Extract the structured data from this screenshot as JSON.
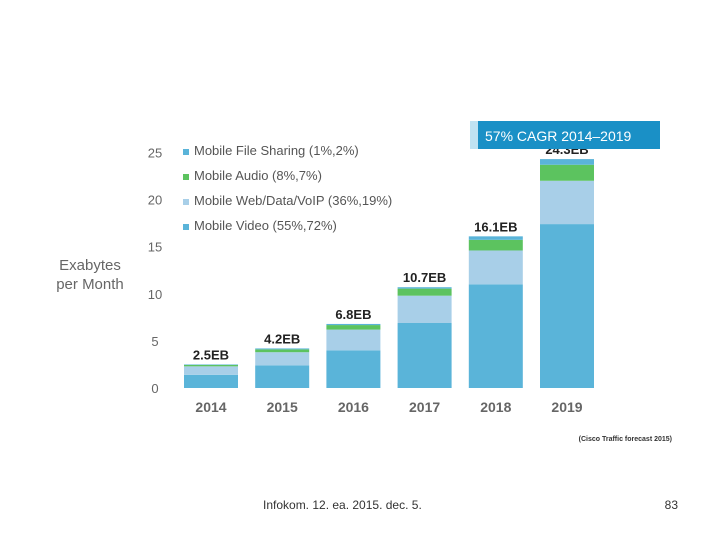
{
  "chart_data": {
    "type": "bar",
    "stacked": true,
    "categories": [
      "2014",
      "2015",
      "2016",
      "2017",
      "2018",
      "2019"
    ],
    "series": [
      {
        "name": "Mobile Video (55%,72%)",
        "color": "#5ab4d9",
        "values": [
          1.4,
          2.4,
          4.0,
          6.9,
          11.0,
          17.4
        ]
      },
      {
        "name": "Mobile Web/Data/VoIP (36%,19%)",
        "color": "#a8cfe8",
        "values": [
          0.9,
          1.4,
          2.2,
          2.9,
          3.6,
          4.6
        ]
      },
      {
        "name": "Mobile Audio (8%,7%)",
        "color": "#5cc35f",
        "values": [
          0.17,
          0.3,
          0.48,
          0.75,
          1.13,
          1.7
        ]
      },
      {
        "name": "Mobile File Sharing (1%,2%)",
        "color": "#5ab4d9",
        "values": [
          0.03,
          0.1,
          0.12,
          0.15,
          0.37,
          0.6
        ]
      }
    ],
    "totals_labels": [
      "2.5EB",
      "4.2EB",
      "6.8EB",
      "10.7EB",
      "16.1EB",
      "24.3EB"
    ],
    "ylabel": "Exabytes per Month",
    "ylabel_lines": [
      "Exabytes",
      "per Month"
    ],
    "ylim": [
      0,
      25
    ],
    "yticks": [
      0,
      5,
      10,
      15,
      20,
      25
    ],
    "legend_position": "top-left",
    "grid": false,
    "banner": "57% CAGR 2014–2019",
    "banner_color": "#1a90c6",
    "source": "(Cisco Traffic forecast 2015)"
  },
  "footer": {
    "left": "Infokom. 12. ea. 2015. dec.  5.",
    "right": "83"
  }
}
